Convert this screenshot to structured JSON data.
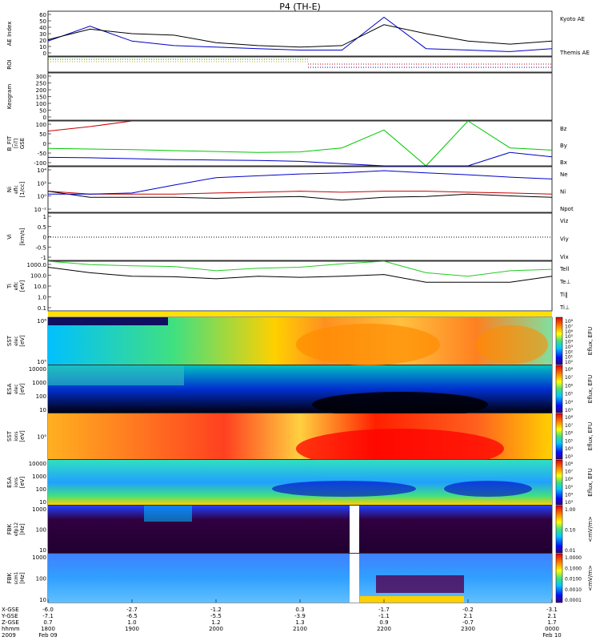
{
  "title": "P4 (TH-E)",
  "colors": {
    "kyoto": "#0000c8",
    "themis": "#000000",
    "bx": "#0000c8",
    "by": "#00c800",
    "bz": "#c80000",
    "ne": "#c80000",
    "ni": "#000000",
    "npot": "#0000c8",
    "tele": "#000000",
    "ti": "#22cc22",
    "spec_orange": "#ff8c00"
  },
  "panels": [
    {
      "id": "ae",
      "ylabel": "AE Index",
      "ticks": [
        "60",
        "50",
        "40",
        "30",
        "20",
        "10",
        "0"
      ],
      "legend": [
        "Kyoto AE",
        "Themis AE"
      ]
    },
    {
      "id": "roi",
      "ylabel": "ROI",
      "ticks": [],
      "legend": []
    },
    {
      "id": "keogram",
      "ylabel": "Keogram",
      "ticks": [
        "300",
        "250",
        "200",
        "150",
        "100",
        "50",
        "0"
      ],
      "legend": []
    },
    {
      "id": "bfit",
      "ylabel": "B_FIT",
      "ylabel2": "GSE",
      "ylabel3": "[nT]",
      "ticks": [
        "100",
        "50",
        "0",
        "-50",
        "-100"
      ],
      "legend": [
        "Bz",
        "By",
        "Bx"
      ]
    },
    {
      "id": "ni",
      "ylabel": "Ni",
      "ylabel2": "[1/cc]",
      "ylabel3": "eflc",
      "ticks": [
        "10⁴",
        "10²",
        "10⁰",
        "10⁻²"
      ],
      "legend": [
        "Ne",
        "Ni",
        "Npot"
      ]
    },
    {
      "id": "vi",
      "ylabel": "Vi",
      "ylabel2": "[km/s]",
      "ticks": [
        "1",
        "0.5",
        "0",
        "-0.5",
        "-1"
      ],
      "legend": [
        "Viz",
        "Viy",
        "Vix"
      ]
    },
    {
      "id": "ti",
      "ylabel": "Ti",
      "ylabel2": "[eV]",
      "ylabel3": "eflc",
      "ticks": [
        "1000.0",
        "100.0",
        "10.0",
        "1.0",
        "0.1"
      ],
      "legend": [
        "Tell",
        "Te⊥",
        "Ti‖",
        "Ti⊥"
      ]
    },
    {
      "id": "sst_e",
      "ylabel": "SST",
      "ylabel2": "[eV]",
      "ylabel3": "elec",
      "ticks": [
        "10⁶",
        "10⁵"
      ],
      "cbar_label": "Eflux, EFU",
      "cbar_ticks": [
        "10⁸",
        "10⁷",
        "10⁶",
        "10⁵",
        "10⁴",
        "10³",
        "10²",
        "10¹",
        "10⁰"
      ]
    },
    {
      "id": "esa_e",
      "ylabel": "ESA",
      "ylabel2": "[eV]",
      "ylabel3": "elec",
      "ticks": [
        "10000",
        "1000",
        "100",
        "10"
      ],
      "cbar_label": "Eflux, EFU",
      "cbar_ticks": [
        "10⁸",
        "10⁷",
        "10⁶",
        "10⁵",
        "10⁴",
        "10³"
      ]
    },
    {
      "id": "sst_i",
      "ylabel": "SST",
      "ylabel2": "[eV]",
      "ylabel3": "ions",
      "ticks": [
        "10⁵"
      ],
      "cbar_label": "Eflux, EFU",
      "cbar_ticks": [
        "10⁸",
        "10⁷",
        "10⁶",
        "10⁵",
        "10⁴",
        "10³"
      ]
    },
    {
      "id": "esa_i",
      "ylabel": "ESA",
      "ylabel2": "[eV]",
      "ylabel3": "ions",
      "ticks": [
        "10000",
        "1000",
        "100",
        "10"
      ],
      "cbar_label": "Eflux, EFU",
      "cbar_ticks": [
        "10⁸",
        "10⁷",
        "10⁶",
        "10⁵",
        "10⁴",
        "10³"
      ]
    },
    {
      "id": "fbk_e",
      "ylabel": "FBK",
      "ylabel2": "[Hz]",
      "ylabel3": "efp12",
      "ticks": [
        "1000",
        "100",
        "10"
      ],
      "cbar_label": "<mV/m>",
      "cbar_ticks": [
        "1.00",
        "0.10",
        "0.01"
      ]
    },
    {
      "id": "fbk_b",
      "ylabel": "FBK",
      "ylabel2": "[Hz]",
      "ylabel3": "scm1",
      "ticks": [
        "1000",
        "100",
        "10"
      ],
      "cbar_label": "<mV/m>",
      "cbar_ticks": [
        "1.0000",
        "0.1000",
        "0.0100",
        "0.0010",
        "0.0001"
      ]
    }
  ],
  "footer": {
    "row_labels": [
      "X-GSE",
      "Y-GSE",
      "Z-GSE",
      "hhmm",
      "2009"
    ],
    "columns": [
      [
        "-6.0",
        "-7.1",
        "0.7",
        "1800",
        "Feb 09"
      ],
      [
        "-2.7",
        "-6.5",
        "1.0",
        "1900",
        ""
      ],
      [
        "-1.2",
        "-5.5",
        "1.2",
        "2000",
        ""
      ],
      [
        "0.3",
        "-3.9",
        "1.3",
        "2100",
        ""
      ],
      [
        "-1.7",
        "-1.1",
        "0.9",
        "2200",
        ""
      ],
      [
        "-0.2",
        "2.1",
        "-0.7",
        "2300",
        ""
      ],
      [
        "-3.1",
        "2.1",
        "1.7",
        "0000",
        "Feb 10"
      ]
    ]
  },
  "chart_data": {
    "type": "line",
    "title": "P4 (TH-E)",
    "time_range": [
      "2009-02-09 18:00",
      "2009-02-10 00:00"
    ],
    "x_hours": [
      18.0,
      18.5,
      19.0,
      19.5,
      20.0,
      20.5,
      21.0,
      21.5,
      22.0,
      22.5,
      23.0,
      23.5,
      24.0
    ],
    "series": [
      {
        "name": "Kyoto AE",
        "panel": "ae",
        "values": [
          20,
          40,
          20,
          14,
          12,
          10,
          8,
          8,
          52,
          10,
          8,
          6,
          10
        ]
      },
      {
        "name": "Themis AE",
        "panel": "ae",
        "values": [
          22,
          36,
          30,
          28,
          18,
          14,
          12,
          14,
          42,
          30,
          20,
          16,
          20
        ]
      },
      {
        "name": "Bz",
        "panel": "bfit",
        "values": [
          55,
          75,
          100,
          null,
          null,
          null,
          null,
          null,
          null,
          null,
          null,
          null,
          null
        ]
      },
      {
        "name": "By",
        "panel": "bfit",
        "values": [
          -22,
          -25,
          -28,
          -32,
          -36,
          -40,
          -38,
          -20,
          60,
          -100,
          100,
          -20,
          -30
        ]
      },
      {
        "name": "Bx",
        "panel": "bfit",
        "values": [
          -62,
          -64,
          -68,
          -72,
          -74,
          -76,
          -80,
          -90,
          -100,
          -100,
          -100,
          -40,
          -60
        ]
      },
      {
        "name": "Ne",
        "panel": "ni",
        "values": [
          3,
          1,
          1,
          1,
          1.5,
          2,
          3,
          2,
          3,
          3,
          2,
          1.5,
          1
        ]
      },
      {
        "name": "Ni",
        "panel": "ni",
        "values": [
          3,
          0.3,
          0.3,
          0.3,
          0.2,
          0.3,
          0.4,
          0.1,
          0.3,
          0.4,
          1,
          0.5,
          0.3
        ]
      },
      {
        "name": "Npot",
        "panel": "ni",
        "values": [
          1,
          1,
          1.5,
          30,
          500,
          1000,
          2000,
          3000,
          7000,
          3000,
          1500,
          600,
          300
        ]
      },
      {
        "name": "Tell",
        "panel": "ti",
        "values": [
          600,
          200,
          100,
          90,
          60,
          100,
          80,
          100,
          140,
          30,
          30,
          30,
          100
        ]
      },
      {
        "name": "Ti‖",
        "panel": "ti",
        "values": [
          2000,
          1000,
          800,
          700,
          300,
          500,
          600,
          1200,
          2000,
          200,
          100,
          300,
          400
        ]
      }
    ]
  }
}
